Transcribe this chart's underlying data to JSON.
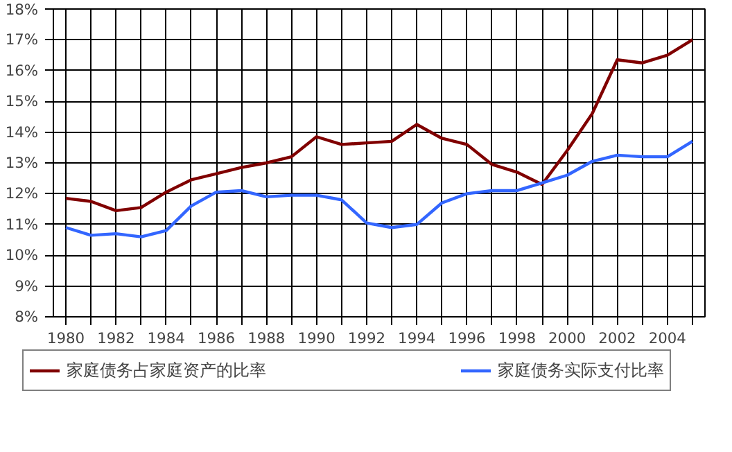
{
  "chart_data": {
    "type": "line",
    "x": [
      1980,
      1981,
      1982,
      1983,
      1984,
      1985,
      1986,
      1987,
      1988,
      1989,
      1990,
      1991,
      1992,
      1993,
      1994,
      1995,
      1996,
      1997,
      1998,
      1999,
      2000,
      2001,
      2002,
      2003,
      2004,
      2005
    ],
    "series": [
      {
        "name": "家庭债务占家庭资产的比率",
        "color": "#800000",
        "values": [
          11.85,
          11.75,
          11.45,
          11.55,
          12.05,
          12.45,
          12.65,
          12.85,
          13.0,
          13.2,
          13.85,
          13.6,
          13.65,
          13.7,
          14.25,
          13.8,
          13.6,
          12.95,
          12.7,
          12.3,
          13.4,
          14.6,
          16.35,
          16.25,
          16.5,
          17.0
        ]
      },
      {
        "name": "家庭债务实际支付比率",
        "color": "#3366ff",
        "values": [
          10.9,
          10.65,
          10.7,
          10.6,
          10.8,
          11.6,
          12.05,
          12.1,
          11.9,
          11.95,
          11.95,
          11.8,
          11.05,
          10.9,
          11.0,
          11.7,
          12.0,
          12.1,
          12.1,
          12.35,
          12.6,
          13.05,
          13.25,
          13.2,
          13.2,
          13.7
        ]
      }
    ],
    "xlim": [
      1979.5,
      2005.5
    ],
    "xticks": [
      1980,
      {
        "value": 1981,
        "label": null
      },
      1982,
      {
        "value": 1983,
        "label": null
      },
      1984,
      {
        "value": 1985,
        "label": null
      },
      1986,
      {
        "value": 1987,
        "label": null
      },
      1988,
      {
        "value": 1989,
        "label": null
      },
      1990,
      {
        "value": 1991,
        "label": null
      },
      1992,
      {
        "value": 1993,
        "label": null
      },
      1994,
      {
        "value": 1995,
        "label": null
      },
      1996,
      {
        "value": 1997,
        "label": null
      },
      1998,
      {
        "value": 1999,
        "label": null
      },
      2000,
      {
        "value": 2001,
        "label": null
      },
      2002,
      {
        "value": 2003,
        "label": null
      },
      2004,
      {
        "value": 2005,
        "label": null
      }
    ],
    "ylim": [
      8,
      18
    ],
    "yticks": [
      {
        "value": 8,
        "label": "8%"
      },
      {
        "value": 9,
        "label": "9%"
      },
      {
        "value": 10,
        "label": "10%"
      },
      {
        "value": 11,
        "label": "11%"
      },
      {
        "value": 12,
        "label": "12%"
      },
      {
        "value": 13,
        "label": "13%"
      },
      {
        "value": 14,
        "label": "14%"
      },
      {
        "value": 15,
        "label": "15%"
      },
      {
        "value": 16,
        "label": "16%"
      },
      {
        "value": 17,
        "label": "17%"
      },
      {
        "value": 18,
        "label": "18%"
      }
    ],
    "grid": true,
    "legend": "bottom",
    "marker": "none",
    "line_style": "solid"
  }
}
